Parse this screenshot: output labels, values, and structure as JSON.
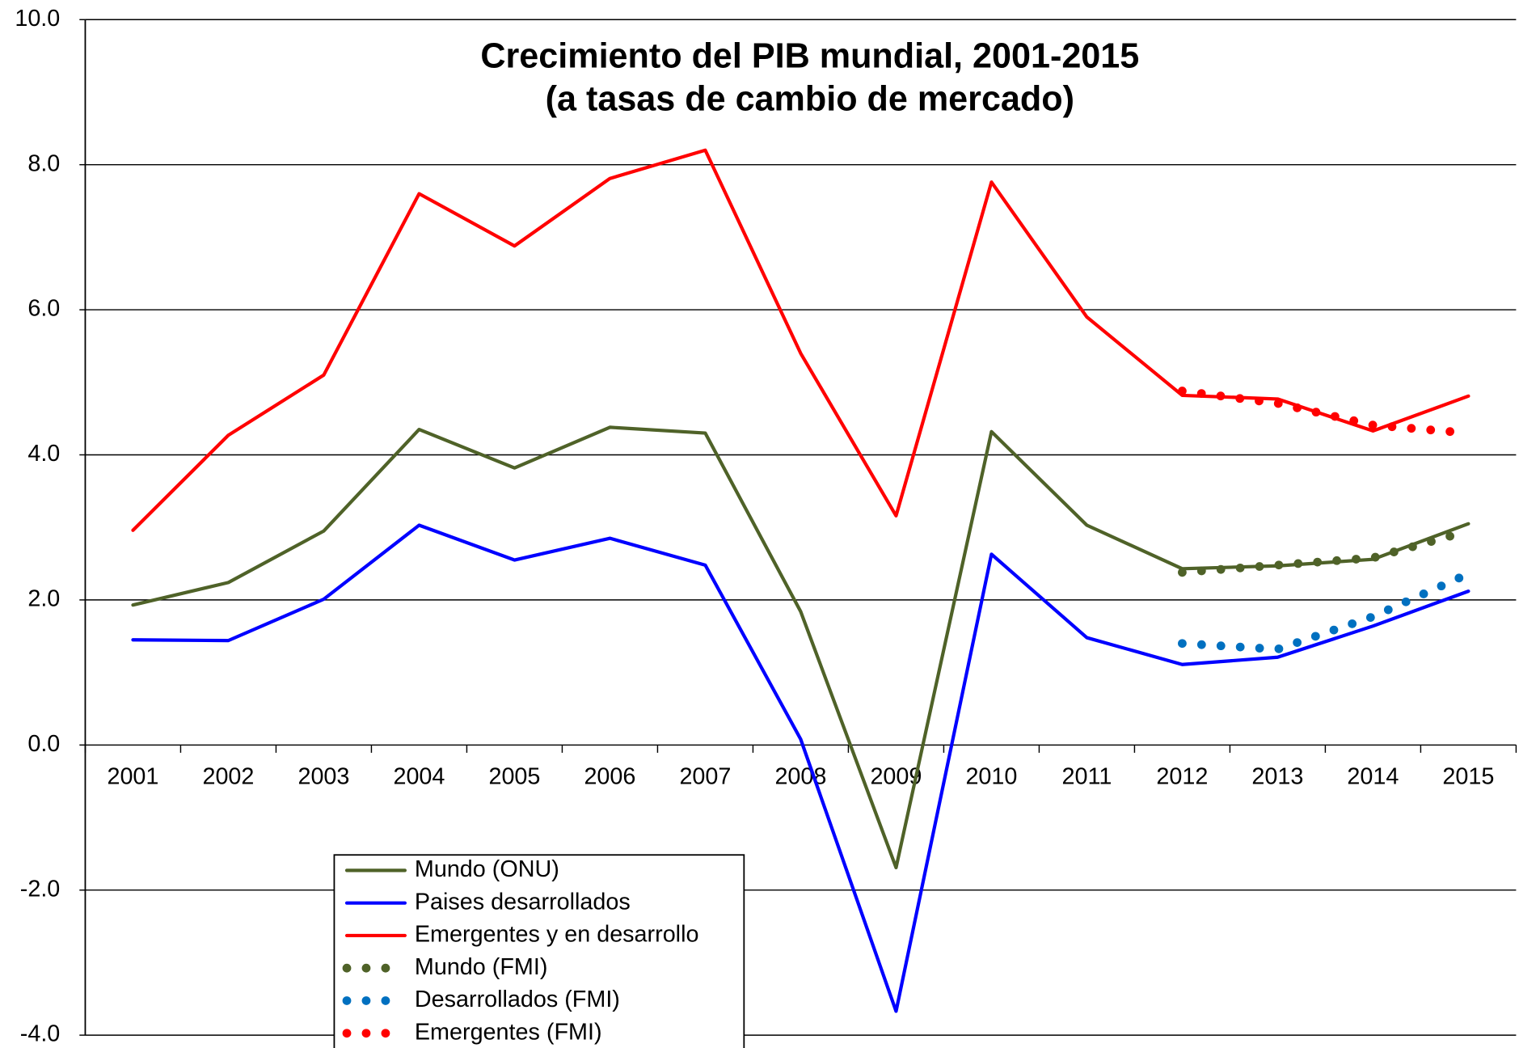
{
  "chart_data": {
    "type": "line",
    "title": "Crecimiento del PIB mundial, 2001-2015",
    "subtitle": "(a tasas de cambio de mercado)",
    "categories": [
      "2001",
      "2002",
      "2003",
      "2004",
      "2005",
      "2006",
      "2007",
      "2008",
      "2009",
      "2010",
      "2011",
      "2012",
      "2013",
      "2014",
      "2015"
    ],
    "series": [
      {
        "name": "Mundo (ONU)",
        "color": "#4f6228",
        "style": "solid",
        "values": [
          1.93,
          2.24,
          2.95,
          4.35,
          3.82,
          4.38,
          4.3,
          1.84,
          -1.69,
          4.32,
          3.03,
          2.43,
          2.47,
          2.56,
          3.05
        ]
      },
      {
        "name": "Paises desarrollados",
        "color": "#0000ff",
        "style": "solid",
        "values": [
          1.45,
          1.44,
          2.01,
          3.03,
          2.55,
          2.85,
          2.48,
          0.08,
          -3.67,
          2.63,
          1.48,
          1.11,
          1.21,
          1.64,
          2.12
        ]
      },
      {
        "name": "Emergentes y en desarrollo",
        "color": "#ff0000",
        "style": "solid",
        "values": [
          2.96,
          4.27,
          5.1,
          7.6,
          6.88,
          7.81,
          8.2,
          5.4,
          3.16,
          7.76,
          5.9,
          4.82,
          4.77,
          4.33,
          4.81
        ]
      },
      {
        "name": "Mundo (FMI)",
        "color": "#4f6228",
        "style": "dotted",
        "values": [
          null,
          null,
          null,
          null,
          null,
          null,
          null,
          null,
          null,
          null,
          null,
          2.38,
          2.48,
          2.58,
          2.95
        ]
      },
      {
        "name": "Desarrollados (FMI)",
        "color": "#0070c0",
        "style": "dotted",
        "values": [
          null,
          null,
          null,
          null,
          null,
          null,
          null,
          null,
          null,
          null,
          null,
          1.4,
          1.32,
          1.77,
          2.36
        ]
      },
      {
        "name": "Emergentes (FMI)",
        "color": "#ff0000",
        "style": "dotted",
        "values": [
          null,
          null,
          null,
          null,
          null,
          null,
          null,
          null,
          null,
          null,
          null,
          4.88,
          4.71,
          4.41,
          4.3
        ]
      }
    ],
    "ylim": [
      -4,
      10
    ],
    "yticks": [
      {
        "value": -4,
        "label": "-4.0"
      },
      {
        "value": -2,
        "label": "-2.0"
      },
      {
        "value": 0,
        "label": "0.0"
      },
      {
        "value": 2,
        "label": "2.0"
      },
      {
        "value": 4,
        "label": "4.0"
      },
      {
        "value": 6,
        "label": "6.0"
      },
      {
        "value": 8,
        "label": "8.0"
      },
      {
        "value": 10,
        "label": "10.0"
      }
    ],
    "grid": true,
    "legend": "bottom-left"
  }
}
